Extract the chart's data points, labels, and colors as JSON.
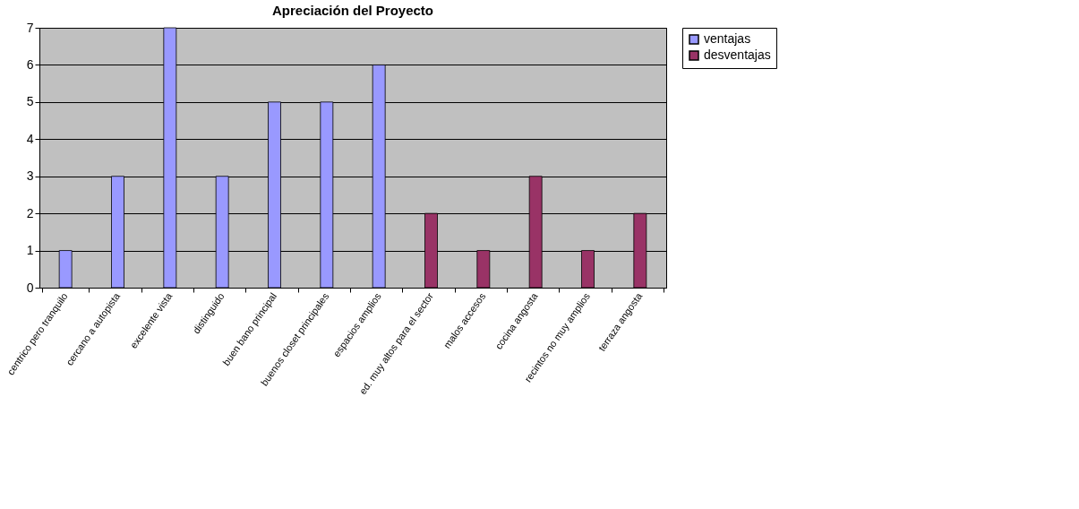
{
  "chart_data": {
    "type": "bar",
    "title": "Apreciación del Proyecto",
    "categories": [
      "centrico pero tranquilo",
      "cercano a autopista",
      "excelente vista",
      "distinguido",
      "buen bano principal",
      "buenos closet principales",
      "espacios amplios",
      "ed. muy altos para el sector",
      "malos accesos",
      "cocina angosta",
      "recintos no muy amplios",
      "terraza angosta"
    ],
    "series": [
      {
        "name": "ventajas",
        "color": "#9999ff",
        "values": [
          1,
          3,
          7,
          3,
          5,
          5,
          6,
          null,
          null,
          null,
          null,
          null
        ]
      },
      {
        "name": "desventajas",
        "color": "#993366",
        "values": [
          null,
          null,
          null,
          null,
          null,
          null,
          null,
          2,
          1,
          3,
          1,
          2
        ]
      }
    ],
    "ylim": [
      0,
      7
    ],
    "yticks": [
      0,
      1,
      2,
      3,
      4,
      5,
      6,
      7
    ],
    "grid": "y",
    "legend": "right"
  }
}
